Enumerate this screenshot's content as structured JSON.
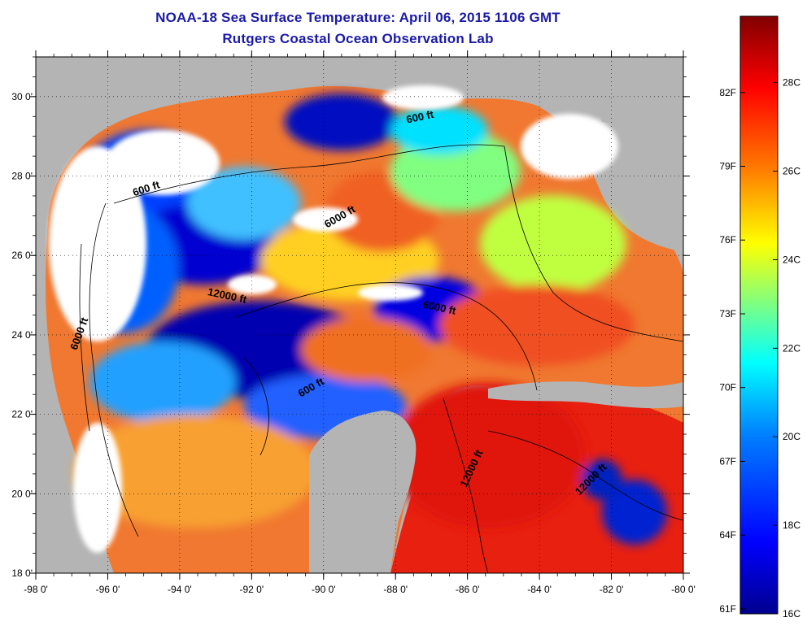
{
  "header": {
    "title": "NOAA-18 Sea Surface Temperature:  April 06, 2015 1106 GMT",
    "subtitle": "Rutgers Coastal Ocean Observation Lab"
  },
  "map": {
    "lon_ticks": [
      "-98 0'",
      "-96 0'",
      "-94 0'",
      "-92 0'",
      "-90 0'",
      "-88 0'",
      "-86 0'",
      "-84 0'",
      "-82 0'",
      "-80 0'"
    ],
    "lat_ticks": [
      "30 0'",
      "28 0'",
      "26 0'",
      "24 0'",
      "22 0'",
      "20 0'",
      "18 0'"
    ],
    "lon_range": [
      -98,
      -80
    ],
    "lat_range": [
      18,
      31
    ],
    "depth_labels": [
      {
        "text": "600 ft",
        "lon": -94.9,
        "lat": 27.6,
        "rot": -18
      },
      {
        "text": "600 ft",
        "lon": -87.3,
        "lat": 29.4,
        "rot": -12
      },
      {
        "text": "6000 ft",
        "lon": -89.5,
        "lat": 26.9,
        "rot": -30
      },
      {
        "text": "6000 ft",
        "lon": -96.7,
        "lat": 24.0,
        "rot": -70
      },
      {
        "text": "6000 ft",
        "lon": -86.8,
        "lat": 24.6,
        "rot": 12
      },
      {
        "text": "12000 ft",
        "lon": -92.7,
        "lat": 24.9,
        "rot": 12
      },
      {
        "text": "600 ft",
        "lon": -90.3,
        "lat": 22.6,
        "rot": -30
      },
      {
        "text": "12000 ft",
        "lon": -85.8,
        "lat": 20.6,
        "rot": -65
      },
      {
        "text": "12000 ft",
        "lon": -82.5,
        "lat": 20.3,
        "rot": -45
      }
    ]
  },
  "colorbar": {
    "fahrenheit_labels": [
      "82F",
      "79F",
      "76F",
      "73F",
      "70F",
      "67F",
      "64F",
      "61F"
    ],
    "celsius_labels": [
      "28C",
      "26C",
      "24C",
      "22C",
      "20C",
      "18C",
      "16C"
    ],
    "fahrenheit_values": [
      82,
      79,
      76,
      73,
      70,
      67,
      64,
      61
    ],
    "celsius_values": [
      28,
      26,
      24,
      22,
      20,
      18,
      16
    ],
    "range_c": [
      16,
      29.5
    ],
    "colors": [
      "#00008f",
      "#0000ff",
      "#0080ff",
      "#00ffff",
      "#80ff80",
      "#ffff00",
      "#ff8000",
      "#ff0000",
      "#800000"
    ]
  },
  "colors": {
    "land": "#b4b4b4",
    "cloud": "#ffffff",
    "title": "#1a1aa8"
  }
}
